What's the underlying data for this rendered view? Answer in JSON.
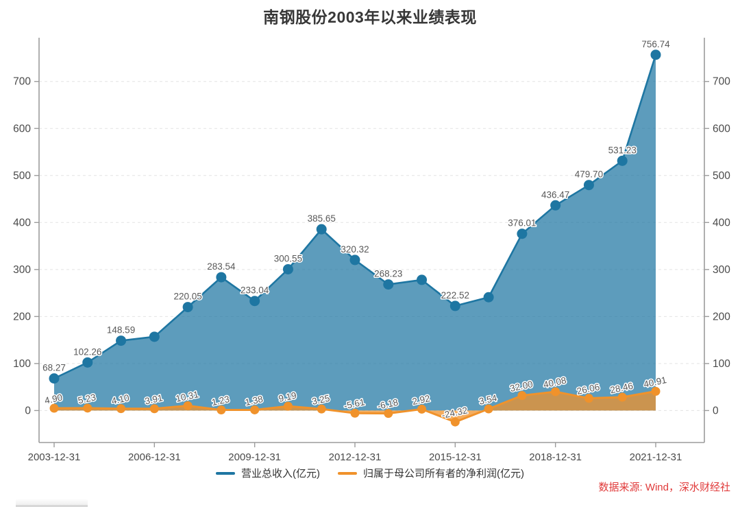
{
  "title": "南钢股份2003年以来业绩表现",
  "source_note": "数据来源: Wind，深水财经社",
  "colors": {
    "revenue": "#1e76a2",
    "profit": "#f0922b",
    "source_note": "#e03a3a"
  },
  "legend": [
    {
      "label": "营业总收入(亿元)",
      "color": "#1e76a2"
    },
    {
      "label": "归属于母公司所有者的净利润(亿元)",
      "color": "#f0922b"
    }
  ],
  "chart_data": {
    "type": "line",
    "title": "南钢股份2003年以来业绩表现",
    "x": [
      "2003-12-31",
      "2004-12-31",
      "2005-12-31",
      "2006-12-31",
      "2007-12-31",
      "2008-12-31",
      "2009-12-31",
      "2010-12-31",
      "2011-12-31",
      "2012-12-31",
      "2013-12-31",
      "2014-12-31",
      "2015-12-31",
      "2016-12-31",
      "2017-12-31",
      "2018-12-31",
      "2019-12-31",
      "2020-12-31",
      "2021-12-31"
    ],
    "x_tick_labels": [
      "2003-12-31",
      "2006-12-31",
      "2009-12-31",
      "2012-12-31",
      "2015-12-31",
      "2018-12-31",
      "2021-12-31"
    ],
    "x_tick_indices": [
      0,
      3,
      6,
      9,
      12,
      15,
      18
    ],
    "y_ticks": [
      0,
      100,
      200,
      300,
      400,
      500,
      600,
      700
    ],
    "ylim": [
      -68,
      793
    ],
    "grid": "horizontal-dashed",
    "legend_position": "bottom-center",
    "dual_y_axis": true,
    "series": [
      {
        "name": "营业总收入(亿元)",
        "style": "area-line",
        "color": "#1e76a2",
        "fill_opacity": 0.72,
        "marker_radius": 7.5,
        "values": [
          68.27,
          102.26,
          148.59,
          157.0,
          220.05,
          283.54,
          233.04,
          300.55,
          385.65,
          320.32,
          268.23,
          278.0,
          222.52,
          241.0,
          376.01,
          436.47,
          479.7,
          531.23,
          756.74
        ],
        "labels": [
          "68.27",
          "102.26",
          "148.59",
          "",
          "220.05",
          "283.54",
          "233.04",
          "300.55",
          "385.65",
          "320.32",
          "268.23",
          "",
          "222.52",
          "",
          "376.01",
          "436.47",
          "479.70",
          "531.23",
          "756.74"
        ],
        "label_rotation": 0
      },
      {
        "name": "归属于母公司所有者的净利润(亿元)",
        "style": "area-line",
        "color": "#f0922b",
        "fill_opacity": 0.75,
        "marker_radius": 6.5,
        "values": [
          4.9,
          5.23,
          4.1,
          3.91,
          10.31,
          1.23,
          1.38,
          9.19,
          3.25,
          -5.61,
          -6.18,
          2.92,
          -24.32,
          3.54,
          32.0,
          40.08,
          26.06,
          28.46,
          40.91
        ],
        "labels": [
          "4.90",
          "5.23",
          "4.10",
          "3.91",
          "10.31",
          "1.23",
          "1.38",
          "9.19",
          "3.25",
          "-5.61",
          "-6.18",
          "2.92",
          "-24.32",
          "3.54",
          "32.00",
          "40.08",
          "26.06",
          "28.46",
          "40.91"
        ],
        "label_rotation": -12
      }
    ]
  }
}
